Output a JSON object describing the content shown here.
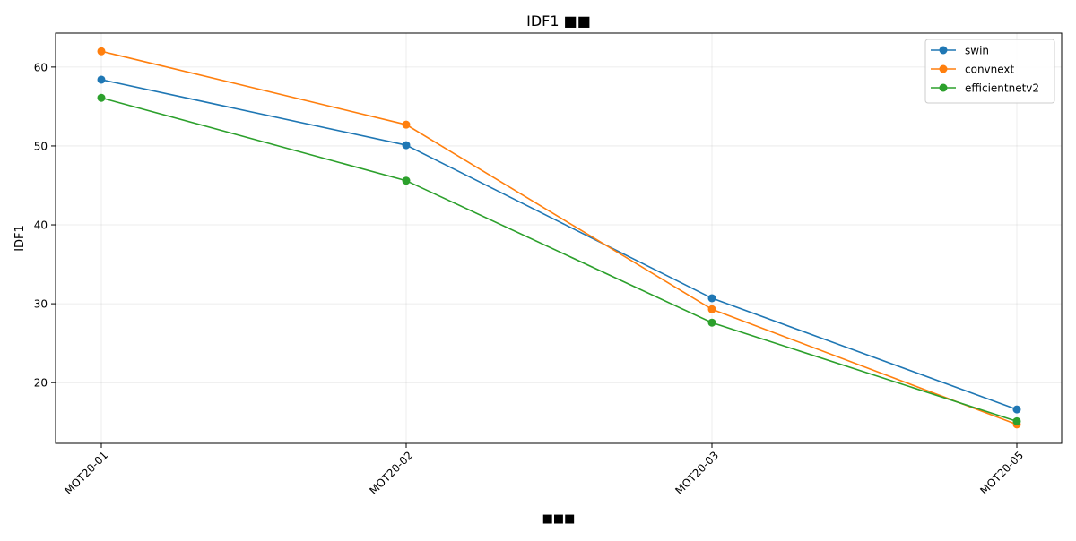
{
  "chart_data": {
    "type": "line",
    "title": "IDF1 ■■",
    "xlabel": "■■■",
    "ylabel": "IDF1",
    "categories": [
      "MOT20-01",
      "MOT20-02",
      "MOT20-03",
      "MOT20-05"
    ],
    "ylim": [
      12.3,
      64.3
    ],
    "yticks": [
      20,
      30,
      40,
      50,
      60
    ],
    "grid": true,
    "legend_position": "top-right",
    "series": [
      {
        "name": "swin",
        "color": "#1f77b4",
        "values": [
          58.4,
          50.1,
          30.7,
          16.6
        ]
      },
      {
        "name": "convnext",
        "color": "#ff7f0e",
        "values": [
          62.0,
          52.7,
          29.3,
          14.7
        ]
      },
      {
        "name": "efficientnetv2",
        "color": "#2ca02c",
        "values": [
          56.1,
          45.6,
          27.6,
          15.1
        ]
      }
    ]
  }
}
